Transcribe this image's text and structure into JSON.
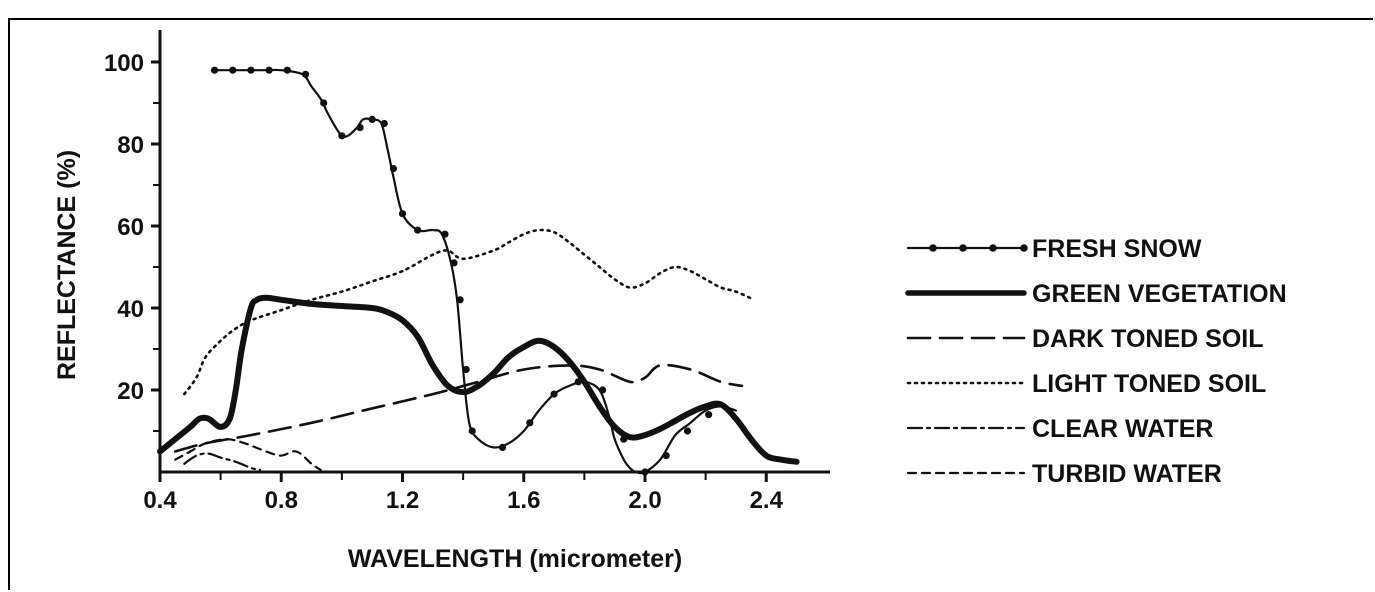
{
  "chart_data": {
    "type": "line",
    "title": "",
    "xlabel": "WAVELENGTH (micrometer)",
    "ylabel": "REFLECTANCE (%)",
    "xlim": [
      0.4,
      2.6
    ],
    "ylim": [
      0,
      100
    ],
    "x_ticks": [
      "0.4",
      "0.8",
      "1.2",
      "1.6",
      "2.0",
      "2.4"
    ],
    "y_ticks": [
      "20",
      "40",
      "60",
      "80",
      "100"
    ],
    "x_tick_values": [
      0.4,
      0.8,
      1.2,
      1.6,
      2.0,
      2.4
    ],
    "y_tick_values": [
      20,
      40,
      60,
      80,
      100
    ],
    "grid": false,
    "legend_position": "right",
    "series": [
      {
        "name": "FRESH SNOW",
        "style": "line-with-dots",
        "color": "#111111",
        "x": [
          0.58,
          0.65,
          0.7,
          0.75,
          0.8,
          0.87,
          0.9,
          0.93,
          0.95,
          0.98,
          1.0,
          1.02,
          1.05,
          1.07,
          1.1,
          1.13,
          1.15,
          1.17,
          1.2,
          1.25,
          1.3,
          1.33,
          1.36,
          1.38,
          1.4,
          1.42,
          1.45,
          1.5,
          1.55,
          1.6,
          1.65,
          1.7,
          1.75,
          1.8,
          1.85,
          1.88,
          1.9,
          1.93,
          1.95,
          1.97,
          2.0,
          2.05,
          2.1,
          2.15,
          2.2,
          2.25,
          2.3
        ],
        "y": [
          98,
          98,
          98,
          98,
          98,
          97,
          94,
          91,
          88,
          84,
          82,
          82,
          84,
          86,
          86,
          85,
          79,
          72,
          63,
          59,
          59,
          58,
          51,
          42,
          25,
          12,
          8,
          6,
          7,
          10,
          15,
          19,
          21,
          22,
          20,
          14,
          8,
          3,
          1,
          0,
          0,
          3,
          9,
          12,
          15,
          16,
          15
        ],
        "dot_x": [
          0.58,
          0.64,
          0.7,
          0.76,
          0.82,
          0.88,
          0.94,
          1.0,
          1.06,
          1.1,
          1.14,
          1.17,
          1.2,
          1.25,
          1.34,
          1.37,
          1.39,
          1.41,
          1.43,
          1.53,
          1.62,
          1.7,
          1.78,
          1.86,
          1.93,
          2.0,
          2.07,
          2.14,
          2.21
        ],
        "dot_y": [
          98,
          98,
          98,
          98,
          98,
          97,
          90,
          82,
          84,
          86,
          85,
          74,
          63,
          59,
          58,
          51,
          42,
          25,
          10,
          6,
          12,
          19,
          22,
          20,
          8,
          0,
          4,
          10,
          14
        ]
      },
      {
        "name": "GREEN VEGETATION",
        "style": "thick",
        "color": "#111111",
        "x": [
          0.4,
          0.45,
          0.5,
          0.53,
          0.56,
          0.6,
          0.63,
          0.65,
          0.67,
          0.7,
          0.72,
          0.75,
          0.8,
          0.9,
          1.0,
          1.1,
          1.15,
          1.2,
          1.25,
          1.3,
          1.35,
          1.4,
          1.45,
          1.5,
          1.55,
          1.6,
          1.65,
          1.7,
          1.75,
          1.8,
          1.85,
          1.9,
          1.95,
          2.0,
          2.05,
          2.1,
          2.15,
          2.2,
          2.25,
          2.3,
          2.35,
          2.4,
          2.45,
          2.5
        ],
        "y": [
          5,
          8,
          11,
          13,
          13,
          11,
          13,
          20,
          30,
          40,
          42,
          42.5,
          42,
          41,
          40.5,
          40,
          39,
          37,
          33,
          26,
          21,
          19.5,
          21,
          24,
          28,
          30.5,
          32,
          30.5,
          27,
          22,
          16,
          11,
          8.5,
          9,
          10.5,
          12.5,
          14.5,
          16,
          16.5,
          13,
          8,
          4,
          3,
          2.5
        ]
      },
      {
        "name": "DARK TONED SOIL",
        "style": "long-dash",
        "color": "#111111",
        "x": [
          0.45,
          0.55,
          0.7,
          0.9,
          1.1,
          1.3,
          1.45,
          1.6,
          1.75,
          1.85,
          1.95,
          2.0,
          2.05,
          2.15,
          2.25,
          2.32
        ],
        "y": [
          5,
          7,
          9,
          12,
          15.5,
          19,
          22,
          25,
          26,
          25,
          22,
          23,
          26,
          25,
          22,
          21
        ]
      },
      {
        "name": "LIGHT TONED SOIL",
        "style": "dotted",
        "color": "#111111",
        "x": [
          0.48,
          0.52,
          0.55,
          0.6,
          0.65,
          0.7,
          0.8,
          0.9,
          1.0,
          1.1,
          1.2,
          1.3,
          1.35,
          1.4,
          1.5,
          1.55,
          1.6,
          1.65,
          1.7,
          1.75,
          1.8,
          1.85,
          1.9,
          1.95,
          2.0,
          2.05,
          2.1,
          2.15,
          2.2,
          2.25,
          2.3,
          2.36
        ],
        "y": [
          19,
          23,
          28,
          32,
          35,
          37,
          39.5,
          42,
          44,
          46.5,
          49,
          53,
          54,
          52,
          54,
          56,
          58,
          59,
          58.5,
          56,
          53,
          50,
          47,
          45,
          46,
          48.5,
          50,
          49,
          47,
          45,
          44,
          42
        ]
      },
      {
        "name": "CLEAR WATER",
        "style": "dash-dot",
        "color": "#111111",
        "x": [
          0.48,
          0.52,
          0.56,
          0.6,
          0.65,
          0.7,
          0.73
        ],
        "y": [
          2,
          4,
          4.5,
          3.5,
          2.5,
          1,
          0.5
        ]
      },
      {
        "name": "TURBID WATER",
        "style": "short-dash",
        "color": "#111111",
        "x": [
          0.45,
          0.5,
          0.55,
          0.62,
          0.68,
          0.75,
          0.8,
          0.85,
          0.9,
          0.93
        ],
        "y": [
          3,
          5,
          7,
          8,
          7,
          5,
          4,
          5,
          2,
          0.5
        ]
      }
    ]
  }
}
